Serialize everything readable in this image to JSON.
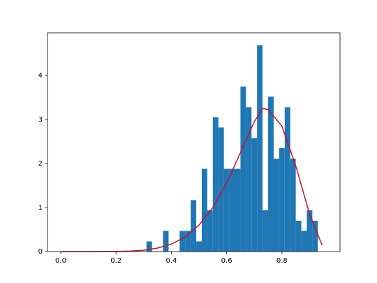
{
  "chart_data": {
    "type": "histogram",
    "bins": [
      0.31,
      0.33,
      0.35,
      0.37,
      0.39,
      0.41,
      0.43,
      0.45,
      0.47,
      0.49,
      0.51,
      0.53,
      0.55,
      0.57,
      0.59,
      0.61,
      0.63,
      0.65,
      0.67,
      0.69,
      0.71,
      0.73,
      0.75,
      0.77,
      0.79,
      0.81,
      0.83,
      0.85,
      0.87,
      0.89,
      0.91,
      0.93
    ],
    "values": [
      0.23,
      0,
      0,
      0.47,
      0,
      0,
      0.47,
      0.47,
      1.17,
      0.23,
      1.88,
      0.94,
      3.05,
      2.82,
      1.88,
      1.88,
      1.88,
      3.75,
      3.28,
      2.58,
      4.69,
      0.94,
      3.52,
      2.11,
      2.35,
      3.28,
      2.11,
      0.7,
      0.47,
      0.94,
      0.7
    ],
    "color": "#1f77b4",
    "curve": {
      "x": [
        0,
        0.1,
        0.2,
        0.25,
        0.3,
        0.35,
        0.4,
        0.45,
        0.5,
        0.55,
        0.6,
        0.65,
        0.7,
        0.73,
        0.75,
        0.8,
        0.85,
        0.9,
        0.945
      ],
      "values": [
        0,
        0,
        0.003,
        0.01,
        0.03,
        0.08,
        0.17,
        0.33,
        0.6,
        1.0,
        1.55,
        2.25,
        2.95,
        3.25,
        3.23,
        2.85,
        1.95,
        0.85,
        0.15
      ],
      "color": "#c8102e"
    },
    "xlim": [
      -0.048,
      1.01
    ],
    "ylim": [
      0,
      4.97
    ],
    "xticks": [
      {
        "value": 0,
        "label": "0.0"
      },
      0.2,
      0.4,
      0.6,
      0.8
    ],
    "yticks": [
      0,
      1,
      2,
      3,
      4
    ]
  }
}
